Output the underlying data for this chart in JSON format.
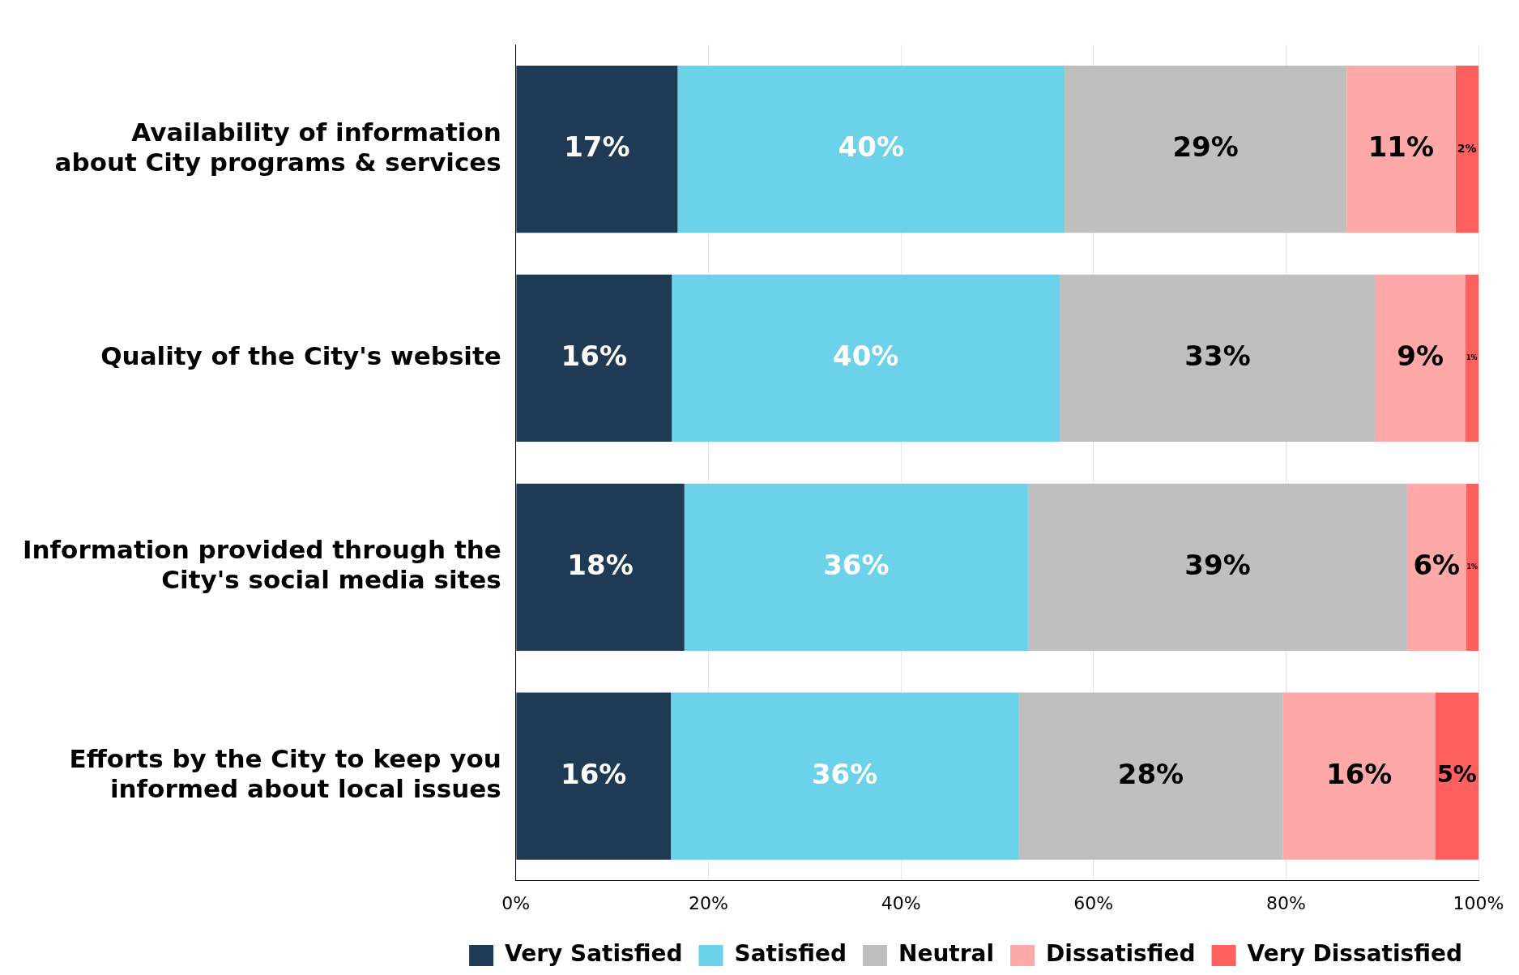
{
  "chart_data": {
    "type": "bar",
    "orientation": "horizontal",
    "stacked": true,
    "categories": [
      "Availability of information about City programs & services",
      "Quality of the City's website",
      "Information provided through the City's social media sites",
      "Efforts by the City to keep you informed about local issues"
    ],
    "series": [
      {
        "name": "Very Satisfied",
        "color": "#1f3a55",
        "values": [
          16.8,
          16.2,
          17.5,
          16.1
        ],
        "value_labels": [
          "17%",
          "16%",
          "18%",
          "16%"
        ]
      },
      {
        "name": "Satisfied",
        "color": "#6bd2ea",
        "values": [
          40.2,
          40.3,
          35.7,
          36.1
        ],
        "value_labels": [
          "40%",
          "40%",
          "36%",
          "36%"
        ]
      },
      {
        "name": "Neutral",
        "color": "#bfbfbf",
        "values": [
          29.3,
          32.8,
          39.4,
          27.5
        ],
        "value_labels": [
          "29%",
          "33%",
          "39%",
          "28%"
        ]
      },
      {
        "name": "Dissatisfied",
        "color": "#fea8a8",
        "values": [
          11.3,
          9.3,
          6.1,
          15.8
        ],
        "value_labels": [
          "11%",
          "9%",
          "6%",
          "16%"
        ]
      },
      {
        "name": "Very Dissatisfied",
        "color": "#fe6060",
        "values": [
          2.4,
          1.4,
          1.3,
          4.5
        ],
        "value_labels": [
          "2%",
          "1%",
          "1%",
          "5%"
        ]
      }
    ],
    "xlim": [
      0,
      100
    ],
    "xticks": [
      {
        "value": 0,
        "label": "0%"
      },
      {
        "value": 20,
        "label": "20%"
      },
      {
        "value": 40,
        "label": "40%"
      },
      {
        "value": 60,
        "label": "60%"
      },
      {
        "value": 80,
        "label": "80%"
      },
      {
        "value": 100,
        "label": "100%"
      }
    ],
    "grid": "x",
    "legend": "bottom"
  }
}
